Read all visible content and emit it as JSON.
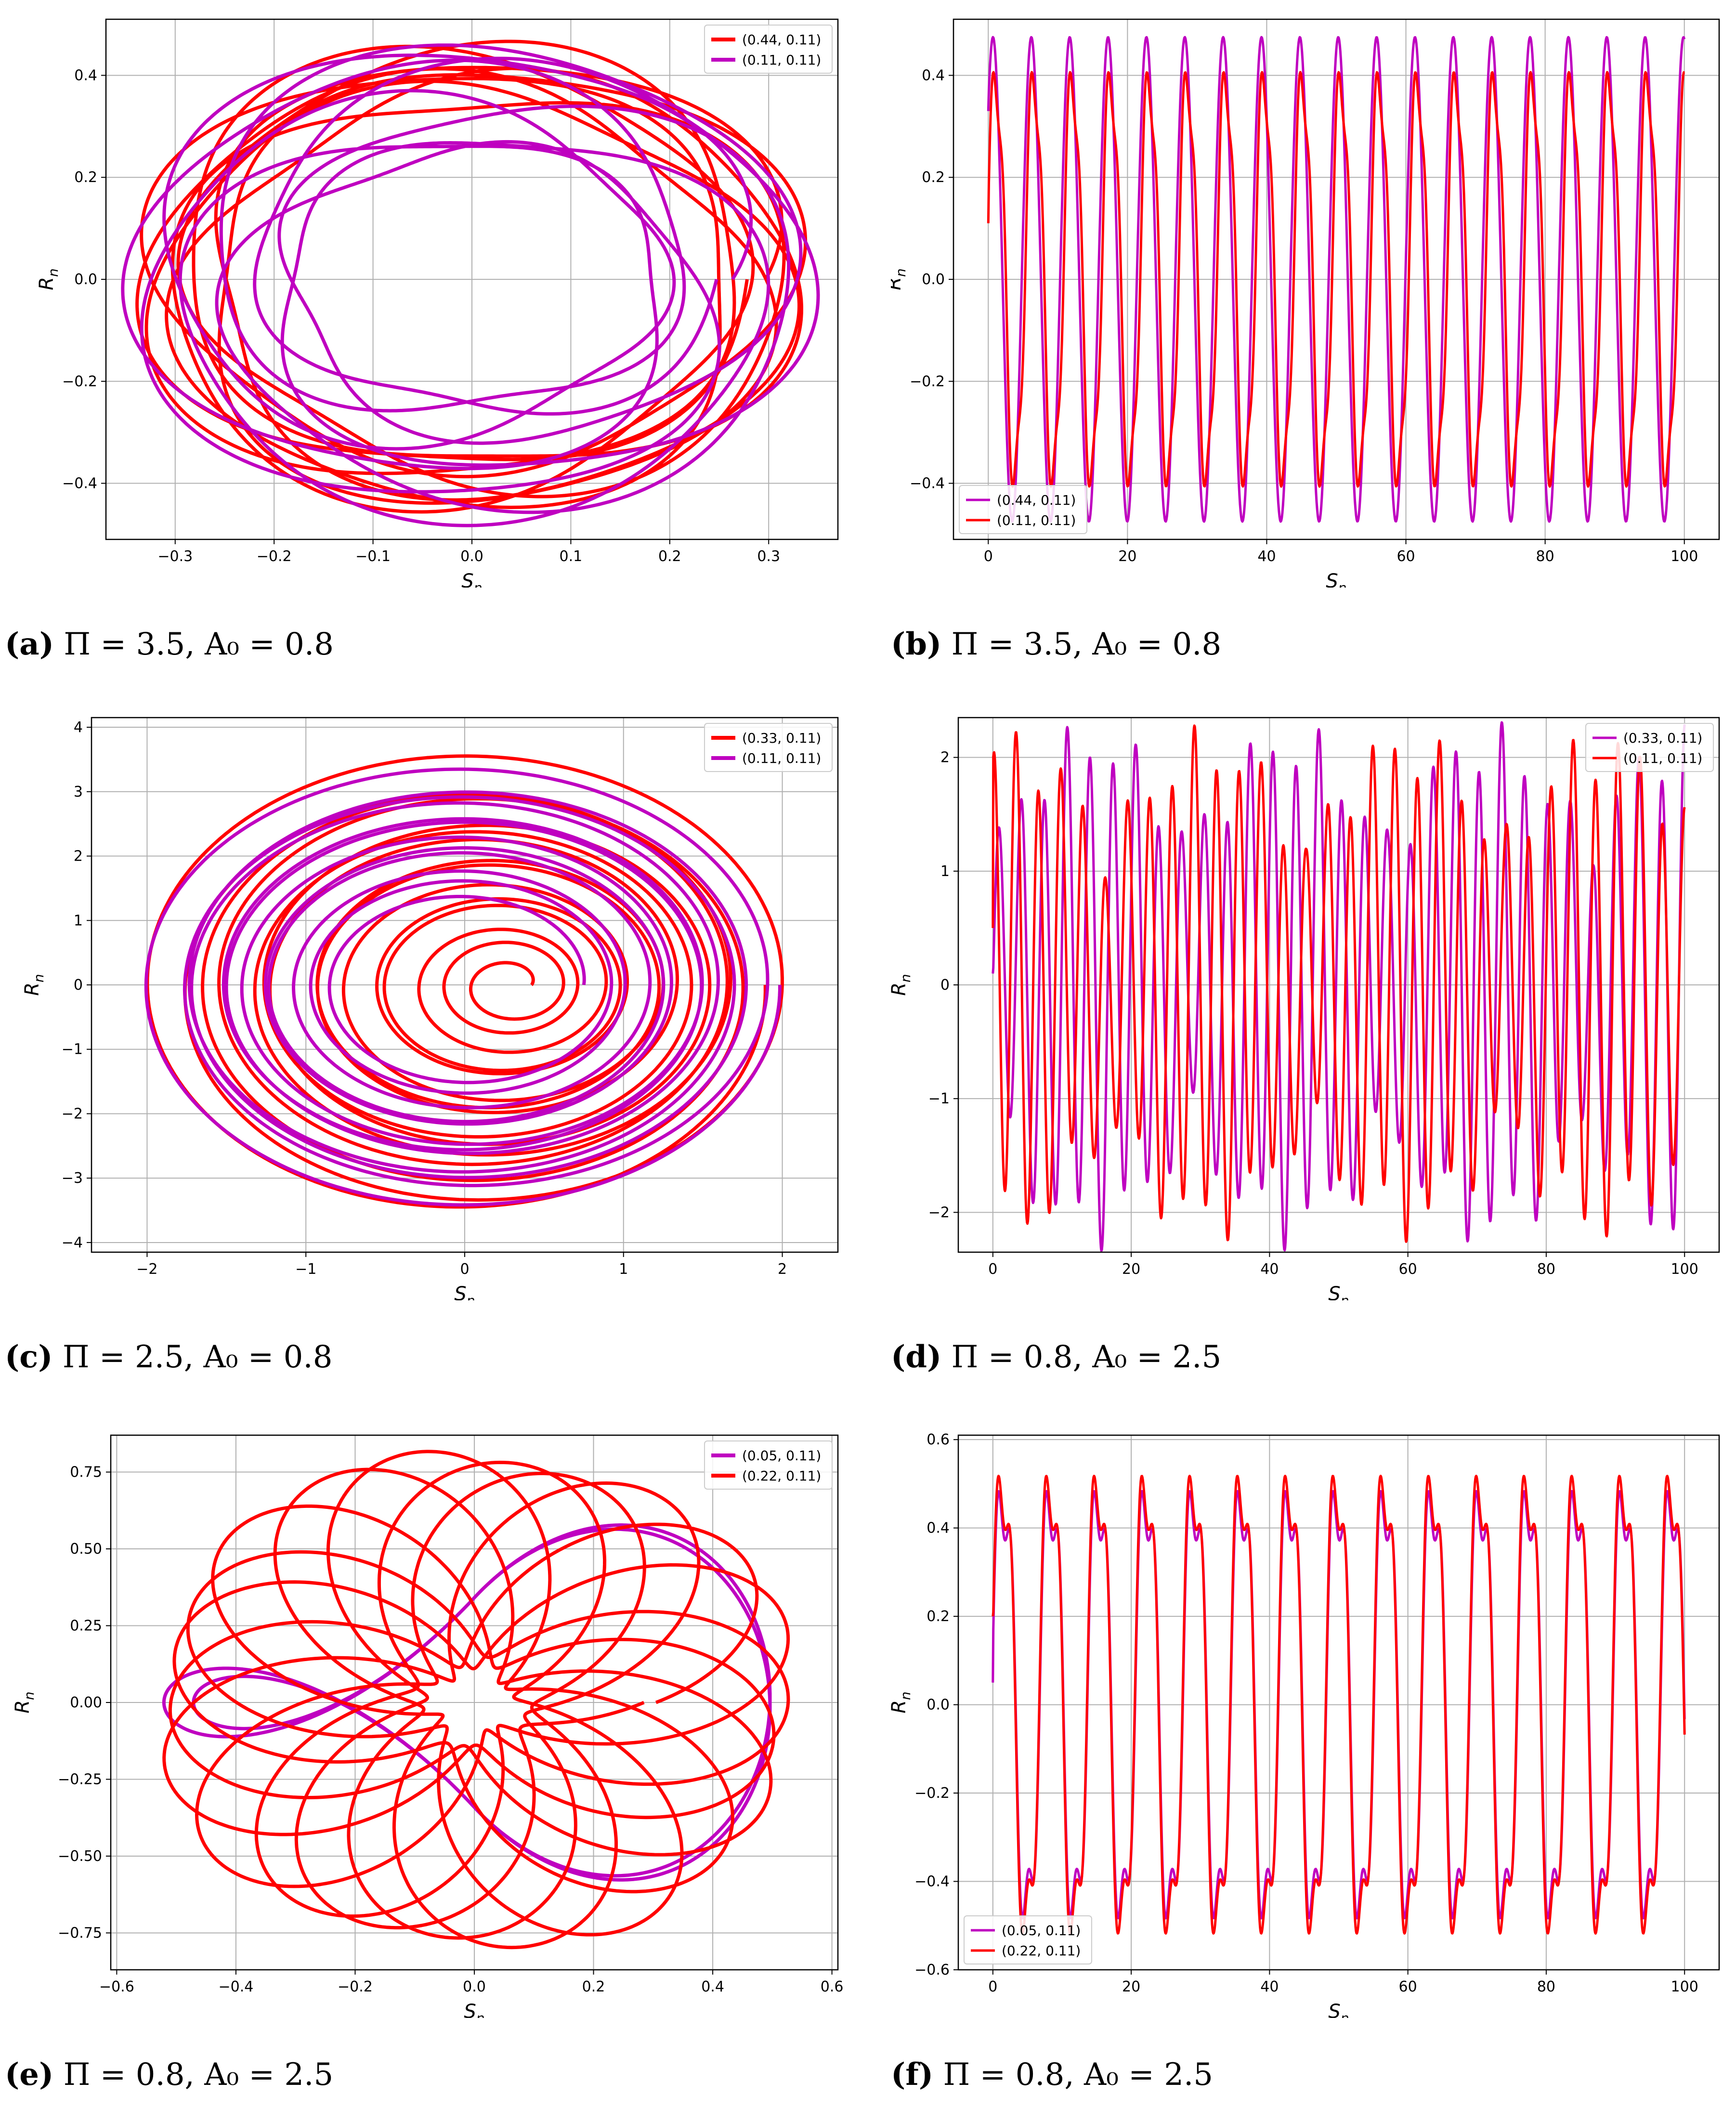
{
  "colors": {
    "red": "#ff0000",
    "magenta": "#bf00c0",
    "grid": "#b0b0b0"
  },
  "captions": [
    {
      "tag": "(a)",
      "text": "Π = 3.5, A₀ = 0.8"
    },
    {
      "tag": "(b)",
      "text": "Π = 3.5, A₀ = 0.8"
    },
    {
      "tag": "(c)",
      "text": "Π = 2.5, A₀ = 0.8"
    },
    {
      "tag": "(d)",
      "text": "Π = 0.8, A₀ = 2.5"
    },
    {
      "tag": "(e)",
      "text": "Π = 0.8, A₀ = 2.5"
    },
    {
      "tag": "(f)",
      "text": "Π = 0.8, A₀ = 2.5"
    }
  ],
  "chart_data": [
    {
      "type": "line",
      "id": "a",
      "xlabel": "S_n",
      "ylabel": "R_n",
      "grid": true,
      "xlim": [
        -0.37,
        0.37
      ],
      "ylim": [
        -0.51,
        0.51
      ],
      "xticks": [
        -0.3,
        -0.2,
        -0.1,
        0.0,
        0.1,
        0.2,
        0.3
      ],
      "yticks": [
        -0.4,
        -0.2,
        0.0,
        0.2,
        0.4
      ],
      "legend": {
        "position": "top-right"
      },
      "series": [
        {
          "name": "(0.44, 0.11)",
          "color": "#ff0000",
          "kind": "torus",
          "sx": 0.33,
          "sy": 0.45,
          "inner": 0.8,
          "turns": 13,
          "mod": 0.06
        },
        {
          "name": "(0.11, 0.11)",
          "color": "#bf00c0",
          "kind": "torus",
          "sx": 0.34,
          "sy": 0.46,
          "inner": 0.55,
          "turns": 7,
          "mod": 0.05
        }
      ]
    },
    {
      "type": "line",
      "id": "b",
      "xlabel": "S_n",
      "ylabel": "R_n",
      "grid": true,
      "xlim": [
        -5,
        105
      ],
      "ylim": [
        -0.51,
        0.51
      ],
      "xticks": [
        0,
        20,
        40,
        60,
        80,
        100
      ],
      "yticks": [
        -0.4,
        -0.2,
        0.0,
        0.2,
        0.4
      ],
      "legend": {
        "position": "bottom-left"
      },
      "series": [
        {
          "name": "(0.44, 0.11)",
          "color": "#bf00c0",
          "kind": "wave",
          "amp": 0.475,
          "omega": 1.14,
          "phase": 0.8,
          "h2": 0.0,
          "start": 0.33
        },
        {
          "name": "(0.11, 0.11)",
          "color": "#ff0000",
          "kind": "wave",
          "amp": 0.4,
          "omega": 1.14,
          "phase": 0.35,
          "h2": 0.06,
          "start": 0.11
        }
      ]
    },
    {
      "type": "line",
      "id": "c",
      "xlabel": "S_n",
      "ylabel": "R_n",
      "grid": true,
      "xlim": [
        -2.35,
        2.35
      ],
      "ylim": [
        -4.15,
        4.15
      ],
      "xticks": [
        -2,
        -1,
        0,
        1,
        2
      ],
      "yticks": [
        -4,
        -3,
        -2,
        -1,
        0,
        1,
        2,
        3,
        4
      ],
      "legend": {
        "position": "top-right"
      },
      "series": [
        {
          "name": "(0.33, 0.11)",
          "color": "#ff0000",
          "kind": "spiral",
          "cx": 0.3,
          "r0": 0.12,
          "r1": 2.1,
          "sy": 1.76,
          "turns": 15
        },
        {
          "name": "(0.11, 0.11)",
          "color": "#bf00c0",
          "kind": "spiral",
          "cx": 0.0,
          "r0": 0.75,
          "r1": 2.05,
          "sy": 1.7,
          "turns": 12
        }
      ]
    },
    {
      "type": "line",
      "id": "d",
      "xlabel": "S_n",
      "ylabel": "R_n",
      "grid": true,
      "xlim": [
        -5,
        105
      ],
      "ylim": [
        -2.35,
        2.35
      ],
      "xticks": [
        0,
        20,
        40,
        60,
        80,
        100
      ],
      "yticks": [
        -2,
        -1,
        0,
        1,
        2
      ],
      "legend": {
        "position": "top-right"
      },
      "series": [
        {
          "name": "(0.33, 0.11)",
          "color": "#bf00c0",
          "kind": "beat",
          "amp": 2.1,
          "omega": 1.9,
          "phase": 0.0,
          "start": 0.1
        },
        {
          "name": "(0.11, 0.11)",
          "color": "#ff0000",
          "kind": "beat",
          "amp": 2.05,
          "omega": 1.95,
          "phase": 1.3,
          "start": 0.5
        }
      ]
    },
    {
      "type": "line",
      "id": "e",
      "xlabel": "S_n",
      "ylabel": "R_n",
      "grid": true,
      "xlim": [
        -0.61,
        0.61
      ],
      "ylim": [
        -0.87,
        0.87
      ],
      "xticks": [
        -0.6,
        -0.4,
        -0.2,
        0.0,
        0.2,
        0.4,
        0.6
      ],
      "yticks": [
        -0.75,
        -0.5,
        -0.25,
        0.0,
        0.25,
        0.5,
        0.75
      ],
      "legend": {
        "position": "top-right"
      },
      "series": [
        {
          "name": "(0.05, 0.11)",
          "color": "#bf00c0",
          "kind": "lemniscate",
          "sx": 0.32,
          "sy": 0.62
        },
        {
          "name": "(0.22, 0.11)",
          "color": "#ff0000",
          "kind": "torus",
          "sx": 0.53,
          "sy": 0.8,
          "inner": 0.15,
          "turns": 22,
          "mod": 0.04
        }
      ]
    },
    {
      "type": "line",
      "id": "f",
      "xlabel": "S_n",
      "ylabel": "R_n",
      "grid": true,
      "xlim": [
        -5,
        105
      ],
      "ylim": [
        -0.6,
        0.61
      ],
      "xticks": [
        0,
        20,
        40,
        60,
        80,
        100
      ],
      "yticks": [
        -0.6,
        -0.4,
        -0.2,
        0.0,
        0.2,
        0.4,
        0.6
      ],
      "legend": {
        "position": "bottom-left"
      },
      "series": [
        {
          "name": "(0.05, 0.11)",
          "color": "#bf00c0",
          "kind": "dbl",
          "amp": 0.5,
          "omega": 0.91,
          "phase": 0.2,
          "start": 0.05
        },
        {
          "name": "(0.22, 0.11)",
          "color": "#ff0000",
          "kind": "dbl",
          "amp": 0.53,
          "omega": 0.91,
          "phase": 0.25,
          "start": 0.2
        }
      ]
    }
  ]
}
